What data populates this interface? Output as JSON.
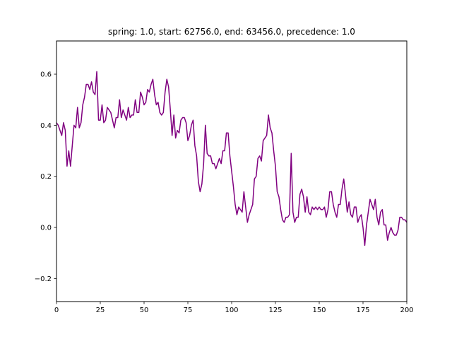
{
  "chart_data": {
    "type": "line",
    "title": "spring: 1.0, start: 62756.0, end: 63456.0, precedence: 1.0",
    "xlabel": "",
    "ylabel": "",
    "xlim": [
      0,
      200
    ],
    "ylim": [
      -0.29,
      0.73
    ],
    "grid": false,
    "x_ticks": [
      0,
      25,
      50,
      75,
      100,
      125,
      150,
      175,
      200
    ],
    "x_tick_labels": [
      "0",
      "25",
      "50",
      "75",
      "100",
      "125",
      "150",
      "175",
      "200"
    ],
    "y_ticks": [
      -0.2,
      0.0,
      0.2,
      0.4,
      0.6
    ],
    "y_tick_labels": [
      "−0.2",
      "0.0",
      "0.2",
      "0.4",
      "0.6"
    ],
    "series": [
      {
        "color": "#800080",
        "values": [
          0.41,
          0.4,
          0.38,
          0.36,
          0.41,
          0.38,
          0.24,
          0.3,
          0.24,
          0.32,
          0.4,
          0.39,
          0.47,
          0.39,
          0.41,
          0.48,
          0.51,
          0.56,
          0.56,
          0.54,
          0.57,
          0.53,
          0.52,
          0.61,
          0.42,
          0.42,
          0.48,
          0.41,
          0.42,
          0.47,
          0.46,
          0.45,
          0.42,
          0.39,
          0.43,
          0.43,
          0.5,
          0.43,
          0.46,
          0.44,
          0.42,
          0.47,
          0.43,
          0.44,
          0.44,
          0.5,
          0.45,
          0.45,
          0.53,
          0.51,
          0.48,
          0.49,
          0.54,
          0.53,
          0.56,
          0.58,
          0.52,
          0.48,
          0.49,
          0.45,
          0.44,
          0.45,
          0.53,
          0.58,
          0.55,
          0.46,
          0.36,
          0.44,
          0.35,
          0.38,
          0.37,
          0.42,
          0.43,
          0.43,
          0.41,
          0.34,
          0.36,
          0.4,
          0.42,
          0.32,
          0.28,
          0.18,
          0.14,
          0.17,
          0.25,
          0.4,
          0.29,
          0.28,
          0.28,
          0.25,
          0.25,
          0.23,
          0.25,
          0.27,
          0.25,
          0.3,
          0.3,
          0.37,
          0.37,
          0.28,
          0.22,
          0.16,
          0.09,
          0.05,
          0.08,
          0.07,
          0.06,
          0.14,
          0.08,
          0.02,
          0.05,
          0.07,
          0.09,
          0.19,
          0.2,
          0.27,
          0.28,
          0.26,
          0.34,
          0.35,
          0.36,
          0.44,
          0.39,
          0.37,
          0.3,
          0.24,
          0.14,
          0.12,
          0.07,
          0.03,
          0.02,
          0.04,
          0.04,
          0.05,
          0.29,
          0.06,
          0.02,
          0.04,
          0.04,
          0.13,
          0.15,
          0.12,
          0.06,
          0.12,
          0.06,
          0.05,
          0.08,
          0.07,
          0.08,
          0.07,
          0.08,
          0.07,
          0.07,
          0.08,
          0.04,
          0.07,
          0.14,
          0.14,
          0.09,
          0.06,
          0.04,
          0.09,
          0.09,
          0.15,
          0.19,
          0.13,
          0.06,
          0.1,
          0.05,
          0.04,
          0.08,
          0.08,
          0.02,
          0.04,
          0.05,
          0.0,
          -0.07,
          0.01,
          0.06,
          0.11,
          0.09,
          0.07,
          0.11,
          0.04,
          0.01,
          0.06,
          0.07,
          0.01,
          0.01,
          -0.05,
          -0.02,
          0.0,
          -0.02,
          -0.03,
          -0.03,
          -0.01,
          0.04,
          0.04,
          0.03,
          0.03,
          0.02
        ]
      }
    ]
  }
}
